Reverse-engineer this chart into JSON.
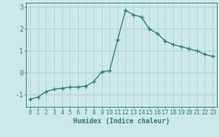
{
  "x": [
    0,
    1,
    2,
    3,
    4,
    5,
    6,
    7,
    8,
    9,
    10,
    11,
    12,
    13,
    14,
    15,
    16,
    17,
    18,
    19,
    20,
    21,
    22,
    23
  ],
  "y": [
    -1.2,
    -1.1,
    -0.85,
    -0.75,
    -0.7,
    -0.65,
    -0.65,
    -0.6,
    -0.4,
    0.05,
    0.1,
    1.5,
    2.85,
    2.65,
    2.55,
    2.0,
    1.8,
    1.45,
    1.3,
    1.2,
    1.1,
    1.0,
    0.85,
    0.75
  ],
  "line_color": "#2e7d6e",
  "marker": "+",
  "markersize": 4,
  "linewidth": 1.0,
  "markeredgewidth": 1.0,
  "background_color": "#cce8e8",
  "grid_color": "#aacece",
  "xlabel": "Humidex (Indice chaleur)",
  "xlabel_fontsize": 7,
  "tick_color": "#2e7d6e",
  "tick_fontsize": 6,
  "yticks": [
    -1,
    0,
    1,
    2,
    3
  ],
  "xlim": [
    -0.5,
    23.5
  ],
  "ylim": [
    -1.55,
    3.2
  ],
  "figsize": [
    3.2,
    2.0
  ],
  "dpi": 100
}
